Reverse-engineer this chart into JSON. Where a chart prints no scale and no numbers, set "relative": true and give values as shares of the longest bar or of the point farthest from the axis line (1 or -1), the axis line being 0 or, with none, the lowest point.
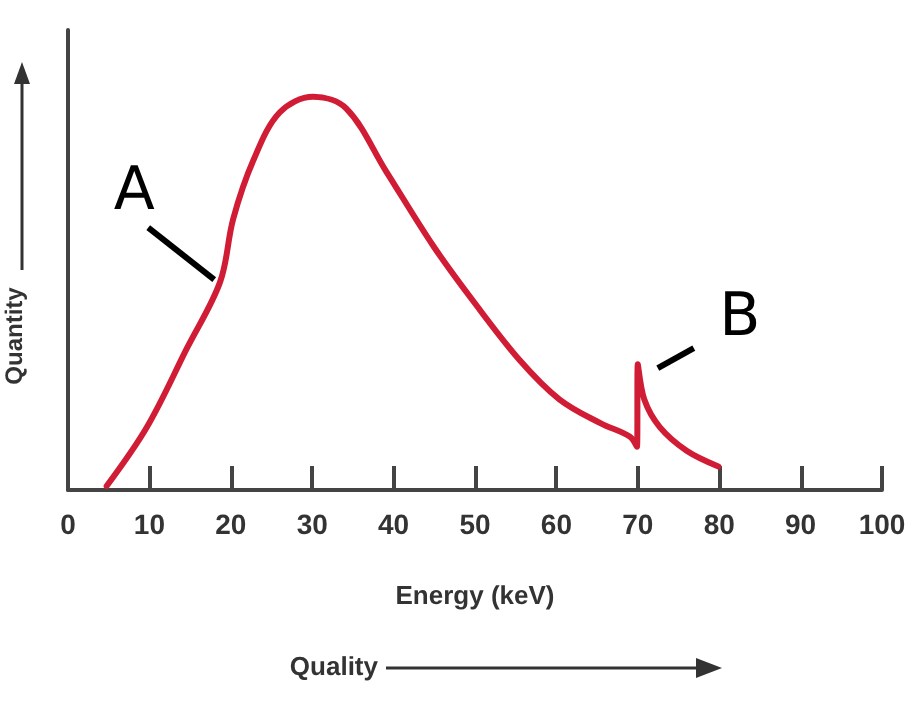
{
  "chart_data": {
    "type": "line",
    "xlabel": "Energy (keV)",
    "ylabel": "Quantity",
    "relative": true,
    "x": [
      4.75,
      9.7,
      14.6,
      18.7,
      20.3,
      22.8,
      26,
      30.1,
      34.2,
      39.1,
      44.9,
      49.8,
      55.5,
      60.4,
      65.4,
      69,
      69.9,
      70,
      70.8,
      72.7,
      76,
      79.9
    ],
    "series": [
      {
        "color": "#d01c34",
        "values": [
          0.01,
          0.16,
          0.36,
          0.53,
          0.69,
          0.84,
          0.96,
          1,
          0.97,
          0.81,
          0.62,
          0.48,
          0.33,
          0.23,
          0.17,
          0.136,
          0.11,
          0.32,
          0.23,
          0.16,
          0.1,
          0.06
        ]
      }
    ],
    "xlim": [
      0,
      100
    ],
    "xticks": [
      0,
      10,
      20,
      30,
      40,
      50,
      60,
      70,
      80,
      90,
      100
    ],
    "grid": false,
    "marker": "none",
    "line_style": "solid",
    "annotations": [
      {
        "text": "A",
        "x": 18.7,
        "y": 0.53
      },
      {
        "text": "B",
        "x": 70,
        "y": 0.32
      },
      "Quality"
    ]
  }
}
